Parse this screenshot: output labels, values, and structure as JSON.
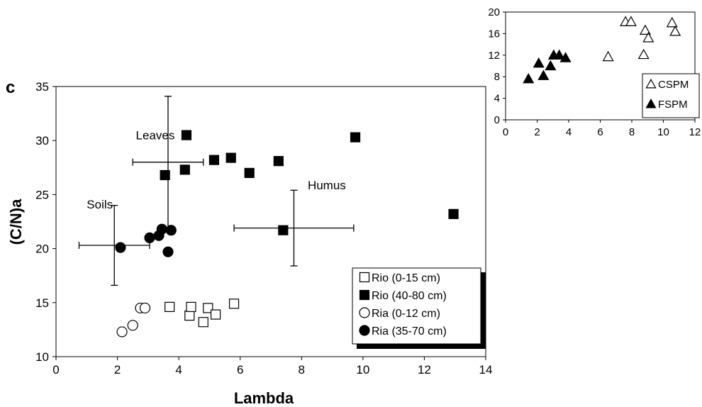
{
  "panel_label": "c",
  "chart_data": [
    {
      "type": "scatter",
      "xlabel": "Lambda",
      "ylabel": "(C/N)a",
      "xlim": [
        0,
        14
      ],
      "ylim": [
        10,
        35
      ],
      "xticks": [
        0,
        2,
        4,
        6,
        8,
        10,
        12,
        14
      ],
      "yticks": [
        10,
        15,
        20,
        25,
        30,
        35
      ],
      "grid": false,
      "legend_position": "bottom-right",
      "series": [
        {
          "name": "Rio (0-15 cm)",
          "marker": "square-open",
          "x": [
            3.7,
            4.35,
            4.4,
            4.8,
            4.95,
            5.2,
            5.8
          ],
          "y": [
            14.6,
            13.8,
            14.6,
            13.2,
            14.5,
            13.9,
            14.9
          ]
        },
        {
          "name": "Rio (40-80 cm)",
          "marker": "square-filled",
          "x": [
            3.55,
            4.25,
            4.2,
            5.15,
            5.7,
            6.3,
            7.25,
            7.4,
            9.75,
            12.95
          ],
          "y": [
            26.8,
            30.5,
            27.3,
            28.2,
            28.4,
            27.0,
            28.1,
            21.7,
            30.3,
            23.2
          ]
        },
        {
          "name": "Ria (0-12 cm)",
          "marker": "circle-open",
          "x": [
            2.15,
            2.5,
            2.75,
            2.9
          ],
          "y": [
            12.3,
            12.9,
            14.5,
            14.5
          ]
        },
        {
          "name": "Ria (35-70 cm)",
          "marker": "circle-filled",
          "x": [
            2.1,
            3.05,
            3.35,
            3.45,
            3.65,
            3.75
          ],
          "y": [
            20.1,
            21.0,
            21.2,
            21.8,
            19.7,
            21.7
          ]
        }
      ],
      "annotations": [
        {
          "text": "Leaves",
          "x": 2.6,
          "y": 30.1,
          "errorbar": {
            "x": 3.65,
            "y": 28.0,
            "x_range": [
              2.5,
              4.8
            ],
            "y_range": [
              21.8,
              34.1
            ]
          }
        },
        {
          "text": "Soils",
          "x": 1.0,
          "y": 23.7,
          "errorbar": {
            "x": 1.9,
            "y": 20.3,
            "x_range": [
              0.75,
              3.05
            ],
            "y_range": [
              16.6,
              24.0
            ]
          }
        },
        {
          "text": "Humus",
          "x": 8.2,
          "y": 25.5,
          "errorbar": {
            "x": 7.75,
            "y": 21.9,
            "x_range": [
              5.8,
              9.7
            ],
            "y_range": [
              18.4,
              25.4
            ]
          }
        }
      ]
    },
    {
      "type": "scatter",
      "xlabel": "",
      "ylabel": "",
      "xlim": [
        0,
        12
      ],
      "ylim": [
        0,
        20
      ],
      "xticks": [
        0,
        2,
        4,
        6,
        8,
        10,
        12
      ],
      "yticks": [
        0,
        4,
        8,
        12,
        16,
        20
      ],
      "y_axis_side": "right",
      "grid": false,
      "legend_position": "bottom-right",
      "series": [
        {
          "name": "CSPM",
          "marker": "triangle-open",
          "x": [
            6.5,
            7.6,
            7.95,
            8.75,
            8.85,
            9.05,
            10.55,
            10.75
          ],
          "y": [
            11.8,
            18.3,
            18.3,
            12.2,
            16.7,
            15.3,
            18.1,
            16.5
          ]
        },
        {
          "name": "FSPM",
          "marker": "triangle-filled",
          "x": [
            1.45,
            2.1,
            2.4,
            2.85,
            3.05,
            3.4,
            3.8
          ],
          "y": [
            7.7,
            10.6,
            8.3,
            10.1,
            12.1,
            12.1,
            11.6
          ]
        }
      ]
    }
  ]
}
